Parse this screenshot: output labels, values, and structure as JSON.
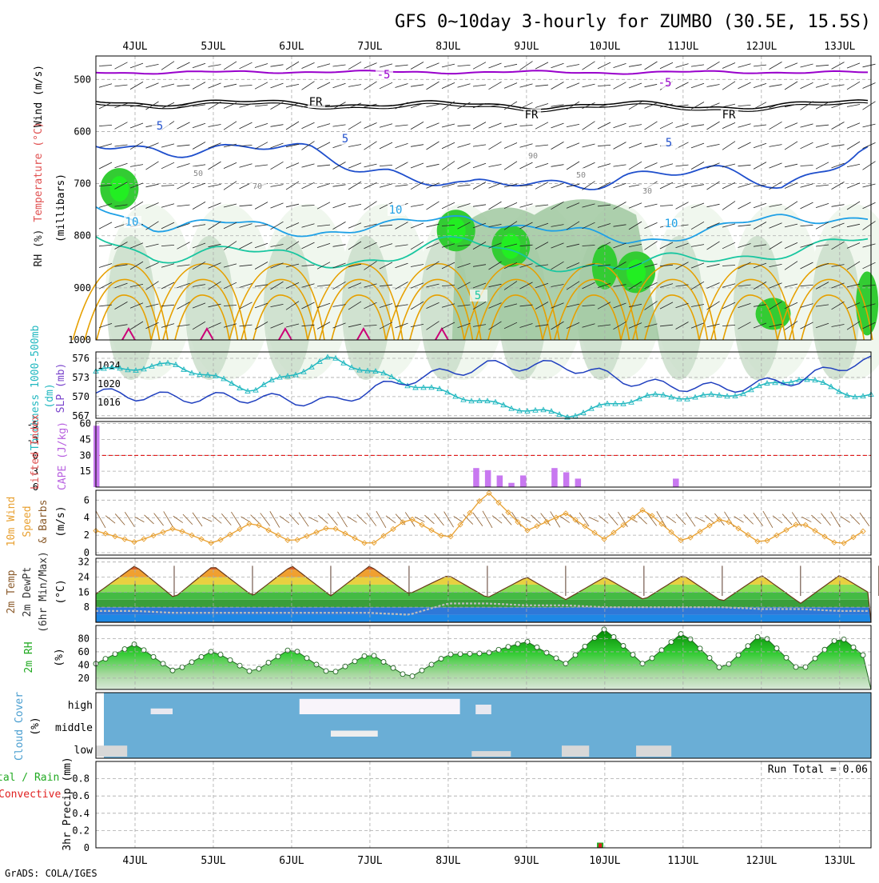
{
  "title": "GFS 0~10day 3-hourly for ZUMBO (30.5E, 15.5S)",
  "footer": "GrADS: COLA/IGES",
  "days": [
    "4JUL",
    "5JUL",
    "6JUL",
    "7JUL",
    "8JUL",
    "9JUL",
    "10JUL",
    "11JUL",
    "12JUL",
    "13JUL"
  ],
  "colors": {
    "rh_green": "#33cc33",
    "t_purple": "#9900cc",
    "t_blue": "#1f4fcc",
    "t_cyan": "#1ea0e6",
    "t_teal": "#19c6a0",
    "t_orange": "#e6a000",
    "t_magenta": "#cc0077",
    "thickness": "#22b8c0",
    "slp": "#1f3fbf",
    "cape": "#c878f0",
    "li_line": "#e00000",
    "wind10": "#e8a030",
    "cloud_bg": "#6aaed6",
    "cloud_gray": "#d8d8d8",
    "cloud_white": "#f8f4fa"
  },
  "panels": {
    "upper": {
      "label_wind": "Wind (m/s)",
      "label_temp": "Temperature (°C)",
      "label_rh": "RH (%)",
      "label_units": "(millibars)",
      "levels": [
        "500",
        "600",
        "700",
        "800",
        "900",
        "1000"
      ],
      "contour_labels": [
        "-5",
        "-5",
        "FR",
        "FR",
        "FR",
        "5",
        "5",
        "5",
        "10",
        "10",
        "10",
        "5",
        "50",
        "70",
        "50",
        "30",
        "90"
      ]
    },
    "thick": {
      "label_a": "Thickness 1000-500mb",
      "label_b": "(dm)",
      "label_c": "SLP (mb)",
      "left_ticks": [
        "576",
        "573",
        "570",
        "567"
      ],
      "right_ticks": [
        "1024",
        "1020",
        "1016"
      ]
    },
    "cape": {
      "label_a": "Lifted Index",
      "label_b": "CAPE (J/kg)",
      "left_ticks": [
        "-5",
        "-3",
        "0",
        "3",
        "6"
      ],
      "right_ticks": [
        "60",
        "45",
        "30",
        "15"
      ]
    },
    "wind10": {
      "label_a": "10m Wind",
      "label_b": "Speed",
      "label_c": "& Barbs",
      "label_d": "(m/s)",
      "ticks": [
        "6",
        "4",
        "2",
        "0"
      ]
    },
    "temp": {
      "label_a": "2m Temp",
      "label_b": "2m DewPt",
      "label_c": "(6hr Min/Max)",
      "label_d": "(°C)",
      "ticks": [
        "32",
        "24",
        "16",
        "8"
      ]
    },
    "rh": {
      "label_a": "2m RH",
      "label_b": "(%)",
      "ticks": [
        "80",
        "60",
        "40",
        "20"
      ]
    },
    "cloud": {
      "label_a": "Cloud Cover",
      "label_b": "(%)",
      "levels": [
        "high",
        "middle",
        "low"
      ]
    },
    "precip": {
      "label_a": "tal / Rain",
      "label_b": "Convective",
      "label_c": "3hr Precip (mm)",
      "run_total": "Run Total = 0.06",
      "ticks": [
        "0.8",
        "0.6",
        "0.4",
        "0.2",
        "0"
      ]
    }
  },
  "chart_data": [
    {
      "type": "area",
      "name": "upper",
      "x_unit": "days since 3JUL 12Z",
      "x": [
        0.0,
        0.75,
        1.75,
        2.75,
        3.75,
        4.75,
        5.75,
        6.75,
        7.75,
        8.75,
        9.75
      ],
      "fr_level_mb": [
        540,
        545,
        545,
        545,
        548,
        548,
        550,
        548,
        552,
        548,
        545
      ],
      "minus5_level_mb": [
        486,
        487,
        486,
        485,
        486,
        486,
        486,
        487,
        486,
        486,
        487
      ],
      "plus5_level_mb": [
        620,
        620,
        645,
        640,
        665,
        720,
        700,
        675,
        690,
        700,
        625
      ],
      "plus10_level_mb": [
        740,
        780,
        780,
        790,
        785,
        760,
        790,
        810,
        790,
        770,
        760
      ],
      "rh_moist_centers_mb": [
        [
          0.3,
          710
        ],
        [
          4.6,
          790
        ],
        [
          5.3,
          820
        ],
        [
          6.9,
          870
        ]
      ]
    },
    {
      "type": "line",
      "name": "thickness_slp",
      "x": [
        0,
        1,
        2,
        3,
        4,
        5,
        6,
        7,
        8,
        9,
        9.75
      ],
      "series": [
        {
          "name": "Thickness",
          "values": [
            574,
            575,
            571,
            576,
            572,
            569,
            567,
            570,
            570,
            573,
            570
          ]
        },
        {
          "name": "SLP",
          "values": [
            1018,
            1017,
            1017,
            1016,
            1021,
            1024,
            1024,
            1020,
            1019,
            1021,
            1025
          ]
        }
      ],
      "ylim": [
        567,
        577
      ]
    },
    {
      "type": "bar",
      "name": "cape",
      "x": [
        0,
        4.85,
        5.0,
        5.15,
        5.3,
        5.45,
        5.85,
        6.0,
        6.15,
        7.4
      ],
      "values": [
        58,
        18,
        16,
        11,
        4,
        11,
        18,
        14,
        8,
        8
      ],
      "ylim": [
        0,
        60
      ]
    },
    {
      "type": "line",
      "name": "wind10",
      "x": [
        0,
        0.5,
        1,
        1.5,
        2,
        2.5,
        3,
        3.5,
        4,
        4.5,
        5,
        5.5,
        6,
        6.5,
        7,
        7.5,
        8,
        8.5,
        9,
        9.5,
        9.9
      ],
      "values": [
        2.5,
        1.2,
        2.8,
        1.0,
        3.5,
        1.2,
        3.0,
        0.8,
        4.0,
        1.5,
        7.0,
        2.5,
        4.5,
        1.5,
        5.0,
        1.2,
        4.0,
        1.0,
        3.5,
        0.8,
        3.0
      ],
      "ylim": [
        0,
        7
      ]
    },
    {
      "type": "area",
      "name": "temp2m",
      "x": [
        0,
        0.5,
        1,
        1.5,
        2,
        2.5,
        3,
        3.5,
        4,
        4.5,
        5,
        5.5,
        6,
        6.5,
        7,
        7.5,
        8,
        8.5,
        9,
        9.5,
        9.9
      ],
      "series": [
        {
          "name": "Temp",
          "values": [
            15,
            30,
            13,
            30,
            14,
            30,
            14,
            30,
            15,
            25,
            13,
            24,
            12,
            24,
            12,
            25,
            11,
            25,
            10,
            25,
            15
          ]
        },
        {
          "name": "DewPt",
          "values": [
            6,
            6,
            5,
            5,
            5,
            5,
            5,
            5,
            4,
            10,
            10,
            9,
            9,
            8,
            8,
            8,
            8,
            7,
            7,
            6,
            6
          ]
        }
      ],
      "ylim": [
        0,
        34
      ]
    },
    {
      "type": "area",
      "name": "rh2m",
      "x": [
        0,
        0.5,
        1,
        1.5,
        2,
        2.5,
        3,
        3.5,
        4,
        4.5,
        5,
        5.5,
        6,
        6.5,
        7,
        7.5,
        8,
        8.5,
        9,
        9.5,
        9.9
      ],
      "values": [
        42,
        72,
        30,
        62,
        28,
        66,
        26,
        58,
        20,
        56,
        58,
        76,
        42,
        95,
        40,
        90,
        32,
        88,
        30,
        84,
        45
      ],
      "ylim": [
        0,
        100
      ]
    },
    {
      "type": "bar",
      "name": "cloud",
      "levels": [
        "high",
        "middle",
        "low"
      ],
      "high_segments": [
        [
          0.7,
          0.98,
          30
        ],
        [
          2.6,
          4.65,
          80
        ],
        [
          4.85,
          5.05,
          50
        ]
      ],
      "middle_segments": [
        [
          3.0,
          3.6,
          30
        ]
      ],
      "low_segments": [
        [
          0.0,
          0.4,
          60
        ],
        [
          4.8,
          5.3,
          30
        ],
        [
          5.95,
          6.3,
          60
        ],
        [
          6.9,
          7.35,
          60
        ]
      ]
    },
    {
      "type": "bar",
      "name": "precip",
      "x": [
        6.4
      ],
      "values": [
        0.06
      ],
      "ylim": [
        0,
        1
      ]
    }
  ]
}
